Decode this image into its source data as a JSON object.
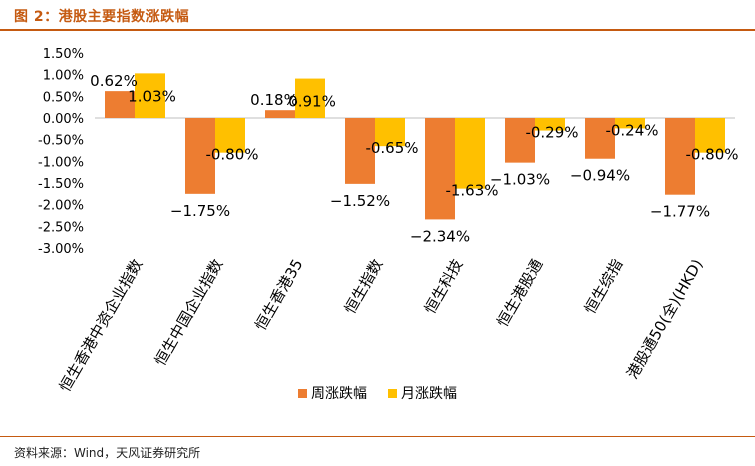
{
  "header": {
    "title": "图 2：港股主要指数涨跌幅"
  },
  "footer": {
    "source": "资料来源：Wind，天风证券研究所"
  },
  "chart_data": {
    "type": "bar",
    "title": "",
    "xlabel": "",
    "ylabel": "",
    "ylim": [
      -3.0,
      1.5
    ],
    "yticks": [
      "1.50%",
      "1.00%",
      "0.50%",
      "0.00%",
      "-0.50%",
      "-1.00%",
      "-1.50%",
      "-2.00%",
      "-2.50%",
      "-3.00%"
    ],
    "categories": [
      "恒生香港中资企业指数",
      "恒生中国企业指数",
      "恒生香港35",
      "恒生指数",
      "恒生科技",
      "恒生港股通",
      "恒生综指",
      "港股通50(全)(HKD)"
    ],
    "series": [
      {
        "name": "周涨跌幅",
        "color": "#ed7d31",
        "values": [
          0.62,
          -1.75,
          0.18,
          -1.52,
          -2.34,
          -1.03,
          -0.94,
          -1.77
        ],
        "labels": [
          "0.62%",
          "−1.75%",
          "0.18%",
          "−1.52%",
          "−2.34%",
          "−1.03%",
          "−0.94%",
          "−1.77%"
        ]
      },
      {
        "name": "月涨跌幅",
        "color": "#ffc000",
        "values": [
          1.03,
          -0.8,
          0.91,
          -0.65,
          -1.63,
          -0.29,
          -0.24,
          -0.8
        ],
        "labels": [
          "1.03%",
          "-0.80%",
          "0.91%",
          "-0.65%",
          "-1.63%",
          "-0.29%",
          "-0.24%",
          "-0.80%"
        ]
      }
    ],
    "grid": false,
    "legend_position": "bottom"
  }
}
